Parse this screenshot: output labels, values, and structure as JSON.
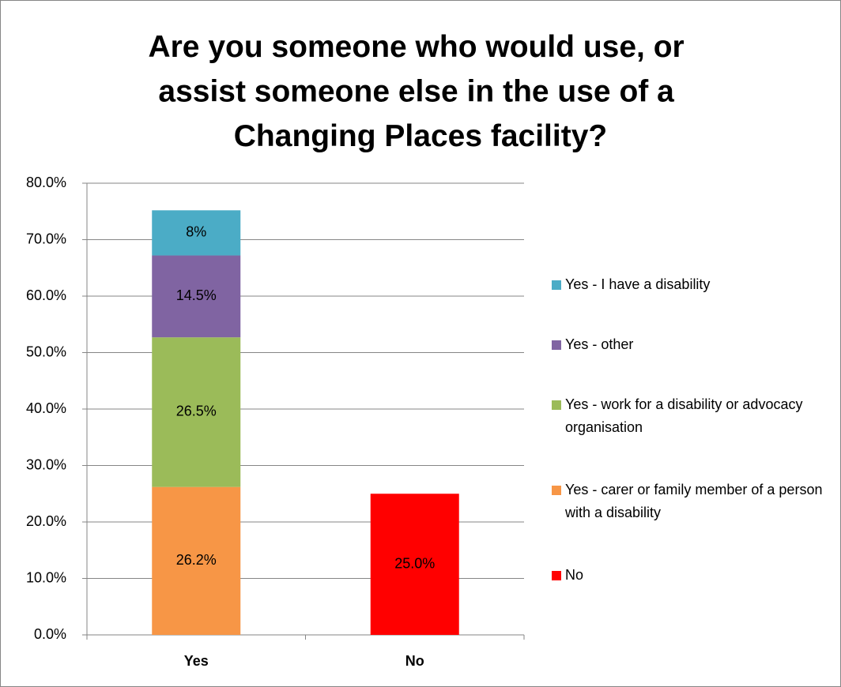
{
  "chart_data": {
    "type": "bar",
    "stacked": true,
    "title": "Are you someone who would use, or assist someone else in the use of a Changing Places facility?",
    "categories": [
      "Yes",
      "No"
    ],
    "series": [
      {
        "name": "No",
        "color": "#ff0000",
        "values": [
          null,
          25.0
        ],
        "value_labels": [
          null,
          "25.0%"
        ]
      },
      {
        "name": "Yes - carer or family member of a person with a disability",
        "color": "#f79646",
        "values": [
          26.2,
          null
        ],
        "value_labels": [
          "26.2%",
          null
        ]
      },
      {
        "name": "Yes - work for a disability or advocacy organisation",
        "color": "#9bbb59",
        "values": [
          26.5,
          null
        ],
        "value_labels": [
          "26.5%",
          null
        ]
      },
      {
        "name": "Yes - other",
        "color": "#8064a2",
        "values": [
          14.5,
          null
        ],
        "value_labels": [
          "14.5%",
          null
        ]
      },
      {
        "name": "Yes - I have a disability",
        "color": "#4bacc6",
        "values": [
          8,
          null
        ],
        "value_labels": [
          "8%",
          null
        ]
      }
    ],
    "ylim": [
      0,
      80
    ],
    "yticks": [
      {
        "value": 0,
        "label": "0.0%"
      },
      {
        "value": 10,
        "label": "10.0%"
      },
      {
        "value": 20,
        "label": "20.0%"
      },
      {
        "value": 30,
        "label": "30.0%"
      },
      {
        "value": 40,
        "label": "40.0%"
      },
      {
        "value": 50,
        "label": "50.0%"
      },
      {
        "value": 60,
        "label": "60.0%"
      },
      {
        "value": 70,
        "label": "70.0%"
      },
      {
        "value": 80,
        "label": "80.0%"
      }
    ],
    "grid": true,
    "legend": "right"
  }
}
